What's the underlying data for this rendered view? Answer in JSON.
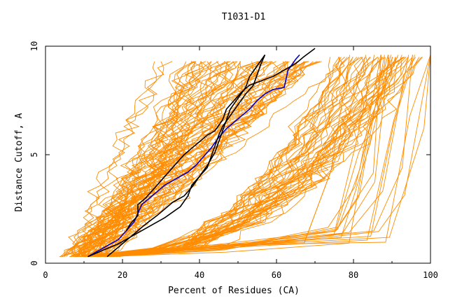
{
  "chart_data": {
    "type": "line",
    "title": "T1031-D1",
    "xlabel": "Percent of Residues (CA)",
    "ylabel": "Distance Cutoff, A",
    "xlim": [
      0,
      100
    ],
    "ylim": [
      0,
      10
    ],
    "xticks": [
      "0",
      "20",
      "40",
      "60",
      "80",
      "100"
    ],
    "yticks": [
      "0",
      "5",
      "10"
    ],
    "grid": false,
    "legend": "none",
    "colors": {
      "models": "#ff8c00",
      "highlight_blue": "#0000cc",
      "highlight_black": "#000000",
      "axes": "#000000"
    },
    "highlight_series": [
      {
        "color": "#0000cc",
        "points": [
          [
            11,
            0.3
          ],
          [
            15,
            0.7
          ],
          [
            19,
            1.1
          ],
          [
            21,
            1.5
          ],
          [
            23,
            1.9
          ],
          [
            24,
            2.3
          ],
          [
            25,
            2.7
          ],
          [
            27,
            3.0
          ],
          [
            29,
            3.3
          ],
          [
            31,
            3.6
          ],
          [
            33,
            3.8
          ],
          [
            35,
            4.0
          ],
          [
            37,
            4.2
          ],
          [
            39,
            4.5
          ],
          [
            41,
            4.9
          ],
          [
            43,
            5.3
          ],
          [
            45,
            5.8
          ],
          [
            47,
            6.2
          ],
          [
            49,
            6.5
          ],
          [
            51,
            6.8
          ],
          [
            53,
            7.1
          ],
          [
            55,
            7.5
          ],
          [
            57,
            7.8
          ],
          [
            59,
            8.0
          ],
          [
            62,
            8.1
          ],
          [
            63,
            8.9
          ],
          [
            65,
            9.4
          ],
          [
            66,
            9.6
          ]
        ]
      },
      {
        "color": "#000000",
        "points": [
          [
            16,
            0.3
          ],
          [
            18,
            0.6
          ],
          [
            20,
            0.9
          ],
          [
            22,
            1.2
          ],
          [
            24,
            1.5
          ],
          [
            26,
            1.8
          ],
          [
            29,
            2.2
          ],
          [
            31,
            2.5
          ],
          [
            33,
            2.8
          ],
          [
            36,
            3.1
          ],
          [
            38,
            3.5
          ],
          [
            40,
            4.0
          ],
          [
            42,
            4.5
          ],
          [
            44,
            5.1
          ],
          [
            45,
            5.6
          ],
          [
            46,
            6.1
          ],
          [
            47,
            6.6
          ],
          [
            48,
            7.1
          ],
          [
            50,
            7.6
          ],
          [
            52,
            8.1
          ],
          [
            53,
            8.6
          ],
          [
            55,
            9.1
          ],
          [
            57,
            9.6
          ]
        ]
      },
      {
        "color": "#000000",
        "points": [
          [
            11,
            0.3
          ],
          [
            15,
            0.6
          ],
          [
            19,
            0.9
          ],
          [
            23,
            1.3
          ],
          [
            27,
            1.7
          ],
          [
            31,
            2.1
          ],
          [
            35,
            2.6
          ],
          [
            37,
            3.1
          ],
          [
            38,
            3.6
          ],
          [
            40,
            4.0
          ],
          [
            42,
            4.4
          ],
          [
            43,
            4.9
          ],
          [
            44,
            5.4
          ],
          [
            45,
            5.9
          ],
          [
            46,
            6.3
          ],
          [
            48,
            6.8
          ],
          [
            50,
            7.3
          ],
          [
            52,
            7.8
          ],
          [
            54,
            8.2
          ],
          [
            55,
            8.7
          ],
          [
            56,
            9.2
          ],
          [
            57,
            9.6
          ]
        ]
      },
      {
        "color": "#000000",
        "points": [
          [
            21,
            1.5
          ],
          [
            22,
            1.8
          ],
          [
            24,
            2.2
          ],
          [
            24,
            2.7
          ],
          [
            26,
            3.0
          ],
          [
            28,
            3.4
          ],
          [
            30,
            3.8
          ],
          [
            32,
            4.2
          ],
          [
            34,
            4.6
          ],
          [
            36,
            5.0
          ],
          [
            38,
            5.3
          ],
          [
            40,
            5.6
          ],
          [
            42,
            5.9
          ],
          [
            44,
            6.1
          ],
          [
            46,
            6.6
          ],
          [
            47,
            7.1
          ],
          [
            49,
            7.5
          ],
          [
            51,
            7.9
          ],
          [
            53,
            8.2
          ],
          [
            56,
            8.4
          ],
          [
            59,
            8.6
          ],
          [
            62,
            8.9
          ],
          [
            65,
            9.2
          ],
          [
            67,
            9.5
          ],
          [
            70,
            9.9
          ]
        ]
      }
    ]
  }
}
